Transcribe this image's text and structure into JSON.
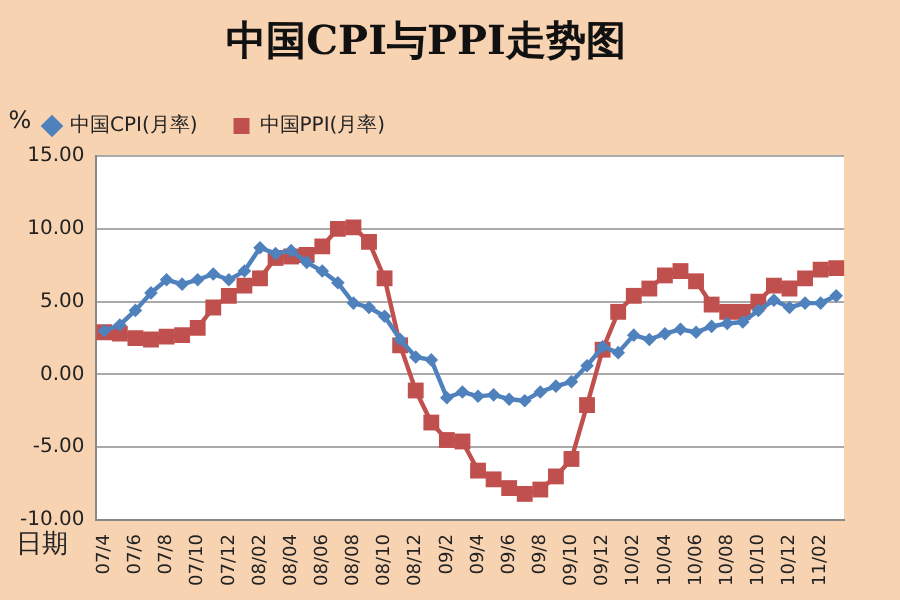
{
  "chart_data": {
    "type": "line",
    "title": "中国CPI与PPI走势图",
    "ylabel": "%",
    "xlabel": "日期",
    "categories": [
      "07/4",
      null,
      "07/6",
      null,
      "07/8",
      null,
      "07/10",
      null,
      "07/12",
      null,
      "08/02",
      null,
      "08/04",
      null,
      "08/06",
      null,
      "08/08",
      null,
      "08/10",
      null,
      "08/12",
      null,
      "09/2",
      null,
      "09/4",
      null,
      "09/6",
      null,
      "09/8",
      null,
      "09/10",
      null,
      "09/12",
      null,
      "10/02",
      null,
      "10/04",
      null,
      "10/06",
      null,
      "10/08",
      null,
      "10/10",
      null,
      "10/12",
      null,
      "11/02",
      null
    ],
    "series": [
      {
        "name": "中国CPI(月率)",
        "color": "#4f81bd",
        "marker": "diamond",
        "values": [
          3.0,
          3.4,
          4.4,
          5.6,
          6.5,
          6.2,
          6.5,
          6.9,
          6.5,
          7.1,
          8.7,
          8.3,
          8.5,
          7.7,
          7.1,
          6.3,
          4.9,
          4.6,
          4.0,
          2.4,
          1.2,
          1.0,
          -1.6,
          -1.2,
          -1.5,
          -1.4,
          -1.7,
          -1.8,
          -1.2,
          -0.8,
          -0.5,
          0.6,
          1.9,
          1.5,
          2.7,
          2.4,
          2.8,
          3.1,
          2.9,
          3.3,
          3.5,
          3.6,
          4.4,
          5.1,
          4.6,
          4.9,
          4.9,
          5.4
        ]
      },
      {
        "name": "中国PPI(月率)",
        "color": "#c0504d",
        "marker": "square",
        "values": [
          2.9,
          2.8,
          2.5,
          2.4,
          2.6,
          2.7,
          3.2,
          4.6,
          5.4,
          6.1,
          6.6,
          8.0,
          8.1,
          8.2,
          8.8,
          10.0,
          10.1,
          9.1,
          6.6,
          2.0,
          -1.1,
          -3.3,
          -4.5,
          -4.6,
          -6.6,
          -7.2,
          -7.8,
          -8.2,
          -7.9,
          -7.0,
          -5.8,
          -2.1,
          1.7,
          4.3,
          5.4,
          5.9,
          6.8,
          7.1,
          6.4,
          4.8,
          4.3,
          4.3,
          5.0,
          6.1,
          5.9,
          6.6,
          7.2,
          7.3
        ]
      }
    ],
    "ylim": [
      -10,
      15
    ],
    "yticks": [
      {
        "value": -10,
        "label": "-10.00"
      },
      {
        "value": -5,
        "label": "-5.00"
      },
      {
        "value": 0,
        "label": "0.00"
      },
      {
        "value": 5,
        "label": "5.00"
      },
      {
        "value": 10,
        "label": "10.00"
      },
      {
        "value": 15,
        "label": "15.00"
      }
    ],
    "grid": "y",
    "legend": "top left"
  }
}
